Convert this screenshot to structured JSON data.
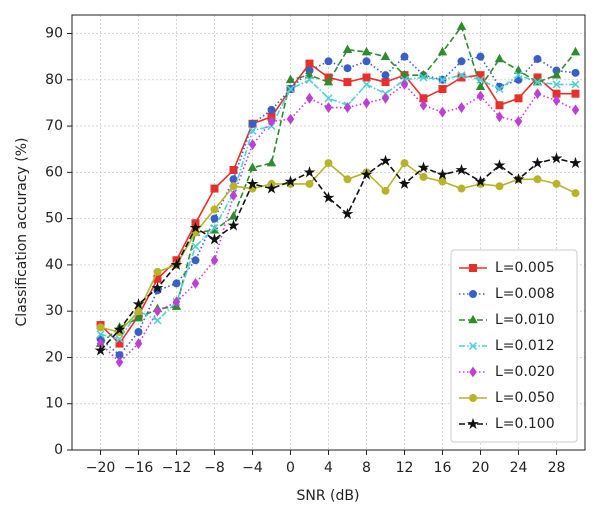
{
  "chart_data": {
    "type": "line",
    "x_label": "SNR (dB)",
    "y_label": "Classification accuracy (%)",
    "x": [
      -20,
      -18,
      -16,
      -14,
      -12,
      -10,
      -8,
      -6,
      -4,
      -2,
      0,
      2,
      4,
      6,
      8,
      10,
      12,
      14,
      16,
      18,
      20,
      22,
      24,
      26,
      28,
      30
    ],
    "series": [
      {
        "name": "L=0.005",
        "color": "#e8302a",
        "marker": "square",
        "linestyle": "solid",
        "values": [
          27,
          23,
          29,
          37,
          41,
          49,
          56.5,
          60.5,
          70.5,
          72,
          78,
          83.5,
          80.5,
          79.5,
          80.5,
          79.5,
          81,
          76,
          78,
          80.5,
          81,
          74.5,
          76,
          80.5,
          77,
          77
        ]
      },
      {
        "name": "L=0.008",
        "color": "#3a5fc8",
        "marker": "circle",
        "linestyle": "dotted",
        "values": [
          24,
          20.5,
          25.5,
          34.5,
          36,
          41,
          50,
          58.5,
          70.5,
          73.5,
          78,
          82,
          84,
          82.5,
          84,
          81,
          85,
          81,
          80,
          84,
          85,
          78.5,
          80,
          84.5,
          82,
          81.5
        ]
      },
      {
        "name": "L=0.010",
        "color": "#2e8b2e",
        "marker": "triangle",
        "linestyle": "dashed",
        "values": [
          23,
          26.5,
          28.5,
          30.5,
          31,
          47,
          47.5,
          50.5,
          61,
          62,
          80,
          81,
          79.5,
          86.5,
          86,
          85,
          81,
          81,
          86,
          91.5,
          78.5,
          84.5,
          82,
          79.5,
          81,
          86
        ]
      },
      {
        "name": "L=0.012",
        "color": "#4fd0d6",
        "marker": "x",
        "linestyle": "dashdot",
        "values": [
          25,
          24,
          30,
          28,
          32,
          44,
          48,
          55.5,
          69,
          70,
          78,
          80,
          76,
          74.5,
          79,
          77,
          80,
          80.5,
          80,
          81,
          80,
          78,
          81,
          79.5,
          79,
          79
        ]
      },
      {
        "name": "L=0.020",
        "color": "#bf3fd6",
        "marker": "diamond",
        "linestyle": "dotted",
        "values": [
          23,
          19,
          23,
          30,
          32,
          36,
          41,
          55,
          66,
          71,
          71.5,
          76,
          74,
          74,
          75,
          76,
          79,
          74.5,
          73,
          74,
          76.5,
          72,
          71,
          77,
          75.5,
          73.5
        ]
      },
      {
        "name": "L=0.050",
        "color": "#b8b42a",
        "marker": "circle",
        "linestyle": "solid",
        "values": [
          26.5,
          25.5,
          30,
          38.5,
          40,
          47,
          52,
          57,
          56.5,
          57.5,
          57.5,
          57.5,
          62,
          58.5,
          60,
          56,
          62,
          59,
          58,
          56.5,
          57.5,
          57,
          58.5,
          58.5,
          57.5,
          55.5
        ]
      },
      {
        "name": "L=0.100",
        "color": "#111111",
        "marker": "star",
        "linestyle": "dashed",
        "values": [
          21.5,
          26,
          31.5,
          35,
          40,
          48,
          45.5,
          48.5,
          57.5,
          56.5,
          58,
          60,
          54.5,
          51,
          59.5,
          62.5,
          57.5,
          61,
          59.5,
          60.5,
          58,
          61.5,
          58.5,
          62,
          63,
          62
        ]
      }
    ],
    "xlim": [
      -23,
      31
    ],
    "ylim": [
      0,
      94
    ],
    "xticks": [
      {
        "value": -20,
        "label": "−20"
      },
      {
        "value": -16,
        "label": "−16"
      },
      {
        "value": -12,
        "label": "−12"
      },
      {
        "value": -8,
        "label": "−8"
      },
      {
        "value": -4,
        "label": "−4"
      },
      0,
      4,
      8,
      12,
      16,
      20,
      24,
      28
    ],
    "yticks": [
      0,
      10,
      20,
      30,
      40,
      50,
      60,
      70,
      80,
      90
    ],
    "grid": true,
    "legend": "lower right"
  }
}
